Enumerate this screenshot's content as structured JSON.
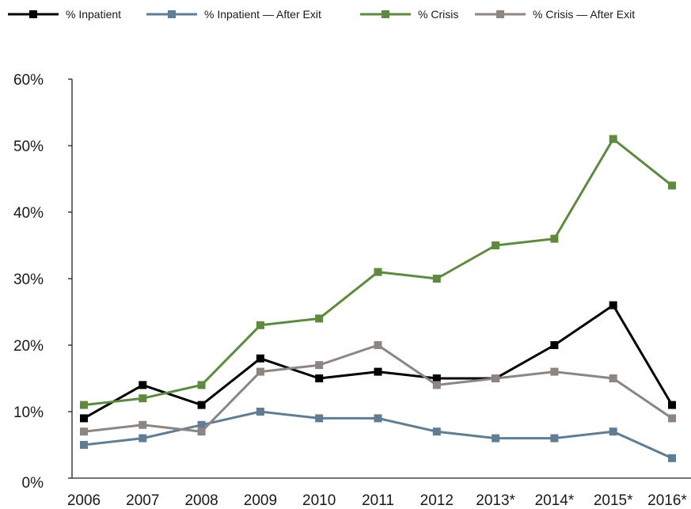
{
  "chart_data": {
    "type": "line",
    "categories": [
      "2006",
      "2007",
      "2008",
      "2009",
      "2010",
      "2011",
      "2012",
      "2013*",
      "2014*",
      "2015*",
      "2016*"
    ],
    "ylim": [
      0,
      60
    ],
    "yticks": [
      0,
      10,
      20,
      30,
      40,
      50,
      60
    ],
    "ytick_labels": [
      "0%",
      "10%",
      "20%",
      "30%",
      "40%",
      "50%",
      "60%"
    ],
    "grid": false,
    "legend_position": "top",
    "series": [
      {
        "name": "% Inpatient",
        "color": "#000000",
        "values": [
          9,
          14,
          11,
          18,
          15,
          16,
          15,
          15,
          20,
          26,
          11
        ]
      },
      {
        "name": "% Inpatient — After Exit",
        "color": "#607d93",
        "values": [
          5,
          6,
          8,
          10,
          9,
          9,
          7,
          6,
          6,
          7,
          3
        ]
      },
      {
        "name": "% Crisis",
        "color": "#5e8a3f",
        "values": [
          11,
          12,
          14,
          23,
          24,
          31,
          30,
          35,
          36,
          51,
          44
        ]
      },
      {
        "name": "% Crisis — After Exit",
        "color": "#8c8581",
        "values": [
          7,
          8,
          7,
          16,
          17,
          20,
          14,
          15,
          16,
          15,
          9
        ]
      }
    ]
  }
}
